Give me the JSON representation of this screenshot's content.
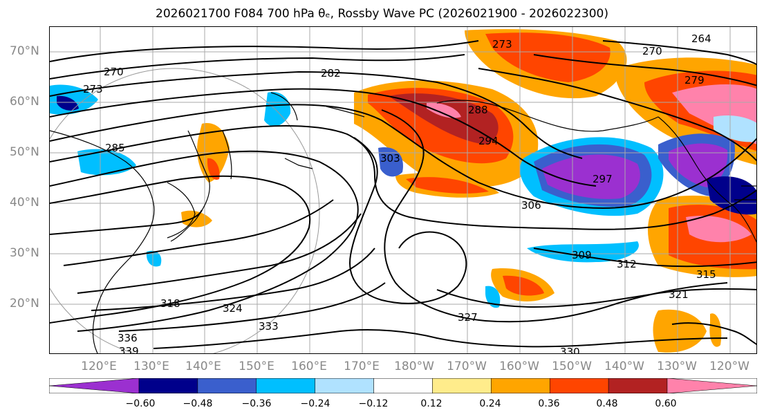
{
  "title": "2026021700 F084 700 hPa θₑ, Rossby Wave PC (2026021900 - 2026022300)",
  "lat_labels": [
    "70°N",
    "60°N",
    "50°N",
    "40°N",
    "30°N",
    "20°N"
  ],
  "lon_labels": [
    "120°E",
    "130°E",
    "140°E",
    "150°E",
    "160°E",
    "170°E",
    "180°W",
    "170°W",
    "160°W",
    "150°W",
    "140°W",
    "130°W",
    "120°W"
  ],
  "contour_labels": [
    "270",
    "273",
    "282",
    "285",
    "288",
    "294",
    "297",
    "303",
    "306",
    "309",
    "312",
    "315",
    "318",
    "321",
    "324",
    "327",
    "330",
    "333",
    "336",
    "339",
    "264",
    "279",
    "270",
    "273"
  ],
  "colorbar": {
    "ticks": [
      "−0.60",
      "−0.48",
      "−0.36",
      "−0.24",
      "−0.12",
      "0.12",
      "0.24",
      "0.36",
      "0.48",
      "0.60"
    ],
    "colors": [
      "#9b30d0",
      "#00008b",
      "#3a5fcd",
      "#00bfff",
      "#b0e2ff",
      "#ffffff",
      "#ffec8b",
      "#ffa500",
      "#ff4500",
      "#b22222",
      "#ff82ab"
    ]
  }
}
